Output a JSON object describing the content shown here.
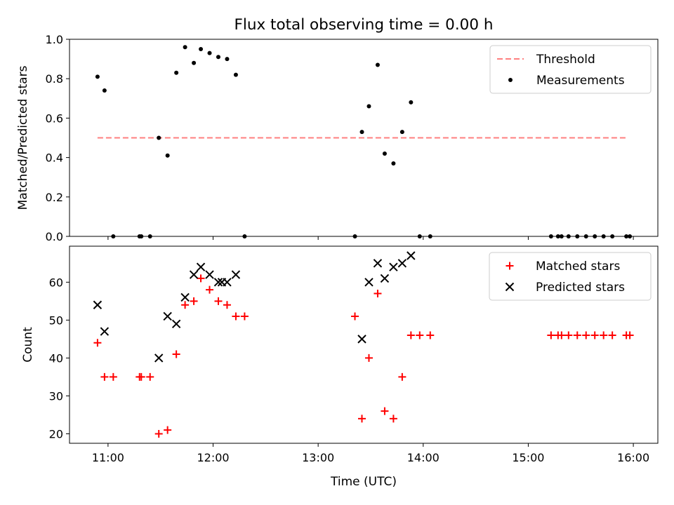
{
  "figure": {
    "title": "Flux total observing time = 0.00 h",
    "xlabel": "Time (UTC)"
  },
  "colors": {
    "threshold": "#ff7f7f",
    "measurements": "#000000",
    "matched": "#ff0000",
    "predicted": "#000000"
  },
  "chart_data": [
    {
      "type": "scatter",
      "ylabel": "Matched/Predicted stars",
      "ylim": [
        0,
        1.0
      ],
      "xlim": [
        "10:38",
        "16:14"
      ],
      "yticks": [
        "0.0",
        "0.2",
        "0.4",
        "0.6",
        "0.8",
        "1.0"
      ],
      "xticks": [
        "11:00",
        "12:00",
        "13:00",
        "14:00",
        "15:00",
        "16:00"
      ],
      "legend_position": "top-right",
      "threshold": {
        "name": "Threshold",
        "style": "dashed",
        "x": [
          "10:54",
          "15:57"
        ],
        "y": 0.5
      },
      "series": [
        {
          "name": "Measurements",
          "marker": "dot",
          "points": [
            [
              "10:54",
              0.81
            ],
            [
              "10:58",
              0.74
            ],
            [
              "11:03",
              0.0
            ],
            [
              "11:18",
              0.0
            ],
            [
              "11:19",
              0.0
            ],
            [
              "11:24",
              0.0
            ],
            [
              "11:29",
              0.5
            ],
            [
              "11:34",
              0.41
            ],
            [
              "11:39",
              0.83
            ],
            [
              "11:44",
              0.96
            ],
            [
              "11:49",
              0.88
            ],
            [
              "11:53",
              0.95
            ],
            [
              "11:58",
              0.93
            ],
            [
              "12:03",
              0.91
            ],
            [
              "12:08",
              0.9
            ],
            [
              "12:13",
              0.82
            ],
            [
              "12:18",
              0.0
            ],
            [
              "13:21",
              0.0
            ],
            [
              "13:25",
              0.53
            ],
            [
              "13:29",
              0.66
            ],
            [
              "13:34",
              0.87
            ],
            [
              "13:38",
              0.42
            ],
            [
              "13:43",
              0.37
            ],
            [
              "13:48",
              0.53
            ],
            [
              "13:53",
              0.68
            ],
            [
              "13:58",
              0.0
            ],
            [
              "14:04",
              0.0
            ],
            [
              "15:13",
              0.0
            ],
            [
              "15:17",
              0.0
            ],
            [
              "15:19",
              0.0
            ],
            [
              "15:23",
              0.0
            ],
            [
              "15:28",
              0.0
            ],
            [
              "15:33",
              0.0
            ],
            [
              "15:38",
              0.0
            ],
            [
              "15:43",
              0.0
            ],
            [
              "15:48",
              0.0
            ],
            [
              "15:56",
              0.0
            ],
            [
              "15:58",
              0.0
            ]
          ]
        }
      ]
    },
    {
      "type": "scatter",
      "ylabel": "Count",
      "ylim": [
        17.5,
        69.5
      ],
      "xlim": [
        "10:38",
        "16:14"
      ],
      "yticks": [
        "20",
        "30",
        "40",
        "50",
        "60"
      ],
      "xticks": [
        "11:00",
        "12:00",
        "13:00",
        "14:00",
        "15:00",
        "16:00"
      ],
      "legend_position": "top-right",
      "series": [
        {
          "name": "Matched stars",
          "marker": "plus",
          "points": [
            [
              "10:54",
              44
            ],
            [
              "10:58",
              35
            ],
            [
              "11:03",
              35
            ],
            [
              "11:18",
              35
            ],
            [
              "11:19",
              35
            ],
            [
              "11:24",
              35
            ],
            [
              "11:29",
              20
            ],
            [
              "11:34",
              21
            ],
            [
              "11:39",
              41
            ],
            [
              "11:44",
              54
            ],
            [
              "11:49",
              55
            ],
            [
              "11:53",
              61
            ],
            [
              "11:58",
              58
            ],
            [
              "12:03",
              55
            ],
            [
              "12:08",
              54
            ],
            [
              "12:13",
              51
            ],
            [
              "12:18",
              51
            ],
            [
              "13:21",
              51
            ],
            [
              "13:25",
              24
            ],
            [
              "13:29",
              40
            ],
            [
              "13:34",
              57
            ],
            [
              "13:38",
              26
            ],
            [
              "13:43",
              24
            ],
            [
              "13:48",
              35
            ],
            [
              "13:53",
              46
            ],
            [
              "13:58",
              46
            ],
            [
              "14:04",
              46
            ],
            [
              "15:13",
              46
            ],
            [
              "15:17",
              46
            ],
            [
              "15:19",
              46
            ],
            [
              "15:23",
              46
            ],
            [
              "15:28",
              46
            ],
            [
              "15:33",
              46
            ],
            [
              "15:38",
              46
            ],
            [
              "15:43",
              46
            ],
            [
              "15:48",
              46
            ],
            [
              "15:56",
              46
            ],
            [
              "15:58",
              46
            ]
          ]
        },
        {
          "name": "Predicted stars",
          "marker": "x",
          "points": [
            [
              "10:54",
              54
            ],
            [
              "10:58",
              47
            ],
            [
              "11:29",
              40
            ],
            [
              "11:34",
              51
            ],
            [
              "11:39",
              49
            ],
            [
              "11:44",
              56
            ],
            [
              "11:49",
              62
            ],
            [
              "11:53",
              64
            ],
            [
              "11:58",
              62
            ],
            [
              "12:03",
              60
            ],
            [
              "12:05",
              60
            ],
            [
              "12:08",
              60
            ],
            [
              "12:13",
              62
            ],
            [
              "13:25",
              45
            ],
            [
              "13:29",
              60
            ],
            [
              "13:34",
              65
            ],
            [
              "13:38",
              61
            ],
            [
              "13:43",
              64
            ],
            [
              "13:48",
              65
            ],
            [
              "13:53",
              67
            ]
          ]
        }
      ]
    }
  ]
}
